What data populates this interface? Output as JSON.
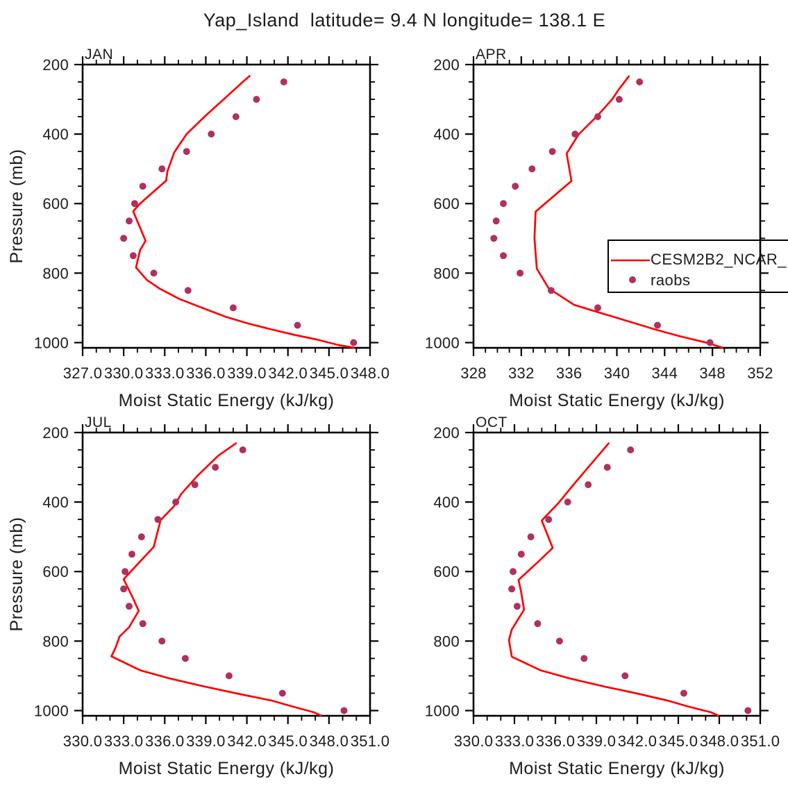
{
  "title": "Yap_Island  latitude= 9.4 N longitude= 138.1 E",
  "colors": {
    "model_line": "#ff0000",
    "raobs_dot": "#b03060",
    "axis": "#000000",
    "text": "#1c1c1c"
  },
  "legend": {
    "items": [
      {
        "label": "CESM2B2_NCAR_",
        "type": "line",
        "color": "#ff0000"
      },
      {
        "label": "raobs",
        "type": "dot",
        "color": "#b03060"
      }
    ]
  },
  "y_axis_label": "Pressure (mb)",
  "x_axis_label": "Moist Static Energy (kJ/kg)",
  "chart_data": [
    {
      "type": "line+scatter",
      "panel": "JAN",
      "xlabel": "Moist Static Energy (kJ/kg)",
      "ylabel": "Pressure (mb)",
      "xlim": [
        327,
        348
      ],
      "ylim": [
        200,
        1015
      ],
      "x_major_values": [
        327,
        330,
        333,
        336,
        339,
        342,
        345,
        348
      ],
      "x_tick_labels": [
        "327.0",
        "330.0",
        "333.0",
        "336.0",
        "339.0",
        "342.0",
        "345.0",
        "348.0"
      ],
      "x_minor_step": 1,
      "y_major_values": [
        200,
        400,
        600,
        800,
        1000
      ],
      "y_tick_labels": [
        "200",
        "400",
        "600",
        "800",
        "1000"
      ],
      "y_minor_step": 50,
      "series": [
        {
          "name": "CESM2B2_NCAR_",
          "type": "line",
          "points_pressure_value": [
            [
              233,
              339.2
            ],
            [
              250,
              338.7
            ],
            [
              300,
              337.3
            ],
            [
              350,
              335.9
            ],
            [
              400,
              334.6
            ],
            [
              452,
              333.7
            ],
            [
              507,
              333.2
            ],
            [
              534,
              333.1
            ],
            [
              600,
              331.2
            ],
            [
              622,
              330.7
            ],
            [
              660,
              331.1
            ],
            [
              707,
              331.6
            ],
            [
              734,
              331.2
            ],
            [
              784,
              330.9
            ],
            [
              820,
              331.7
            ],
            [
              844,
              332.6
            ],
            [
              875,
              334.1
            ],
            [
              901,
              335.8
            ],
            [
              925,
              337.4
            ],
            [
              945,
              339.1
            ],
            [
              961,
              340.7
            ],
            [
              977,
              342.4
            ],
            [
              991,
              344.1
            ],
            [
              1007,
              345.7
            ],
            [
              1014,
              346.8
            ]
          ]
        },
        {
          "name": "raobs",
          "type": "scatter",
          "pressures": [
            250,
            300,
            350,
            400,
            450,
            500,
            550,
            600,
            650,
            700,
            750,
            800,
            850,
            900,
            950,
            1000
          ],
          "values": [
            341.7,
            339.7,
            338.2,
            336.4,
            334.6,
            332.8,
            331.4,
            330.8,
            330.4,
            330.0,
            330.7,
            332.2,
            334.7,
            338.0,
            342.7,
            346.8
          ]
        }
      ]
    },
    {
      "type": "line+scatter",
      "panel": "APR",
      "xlabel": "Moist Static Energy (kJ/kg)",
      "ylabel": "",
      "xlim": [
        328,
        352
      ],
      "ylim": [
        200,
        1015
      ],
      "x_major_values": [
        328,
        332,
        336,
        340,
        344,
        348,
        352
      ],
      "x_tick_labels": [
        "328",
        "332",
        "336",
        "340",
        "344",
        "348",
        "352"
      ],
      "x_minor_step": 1,
      "y_major_values": [
        200,
        400,
        600,
        800,
        1000
      ],
      "y_tick_labels": [
        "200",
        "400",
        "600",
        "800",
        "1000"
      ],
      "y_minor_step": 50,
      "series": [
        {
          "name": "CESM2B2_NCAR_",
          "type": "line",
          "points_pressure_value": [
            [
              234,
              341.0
            ],
            [
              270,
              340.2
            ],
            [
              300,
              339.6
            ],
            [
              350,
              338.3
            ],
            [
              401,
              336.8
            ],
            [
              456,
              335.8
            ],
            [
              535,
              336.2
            ],
            [
              623,
              333.2
            ],
            [
              700,
              333.1
            ],
            [
              787,
              333.3
            ],
            [
              844,
              334.3
            ],
            [
              891,
              336.4
            ],
            [
              908,
              338.0
            ],
            [
              938,
              340.9
            ],
            [
              964,
              343.4
            ],
            [
              981,
              345.2
            ],
            [
              1001,
              347.6
            ],
            [
              1014,
              348.8
            ]
          ]
        },
        {
          "name": "raobs",
          "type": "scatter",
          "pressures": [
            250,
            300,
            350,
            400,
            450,
            500,
            550,
            600,
            650,
            700,
            750,
            800,
            850,
            900,
            950,
            1000
          ],
          "values": [
            341.9,
            340.2,
            338.4,
            336.5,
            334.6,
            332.9,
            331.5,
            330.5,
            329.9,
            329.7,
            330.5,
            331.9,
            334.5,
            338.4,
            343.4,
            347.8
          ]
        }
      ]
    },
    {
      "type": "line+scatter",
      "panel": "JUL",
      "xlabel": "Moist Static Energy (kJ/kg)",
      "ylabel": "Pressure (mb)",
      "xlim": [
        330,
        351
      ],
      "ylim": [
        200,
        1015
      ],
      "x_major_values": [
        330,
        333,
        336,
        339,
        342,
        345,
        348,
        351
      ],
      "x_tick_labels": [
        "330.0",
        "333.0",
        "336.0",
        "339.0",
        "342.0",
        "345.0",
        "348.0",
        "351.0"
      ],
      "x_minor_step": 1,
      "y_major_values": [
        200,
        400,
        600,
        800,
        1000
      ],
      "y_tick_labels": [
        "200",
        "400",
        "600",
        "800",
        "1000"
      ],
      "y_minor_step": 50,
      "series": [
        {
          "name": "CESM2B2_NCAR_",
          "type": "line",
          "points_pressure_value": [
            [
              231,
              341.2
            ],
            [
              267,
              339.9
            ],
            [
              324,
              338.4
            ],
            [
              377,
              337.2
            ],
            [
              411,
              336.7
            ],
            [
              452,
              335.7
            ],
            [
              497,
              335.4
            ],
            [
              529,
              335.2
            ],
            [
              571,
              334.2
            ],
            [
              622,
              333.0
            ],
            [
              670,
              333.6
            ],
            [
              713,
              334.1
            ],
            [
              760,
              333.4
            ],
            [
              787,
              332.7
            ],
            [
              820,
              332.4
            ],
            [
              844,
              332.1
            ],
            [
              884,
              334.2
            ],
            [
              908,
              336.4
            ],
            [
              929,
              338.7
            ],
            [
              951,
              341.3
            ],
            [
              971,
              343.8
            ],
            [
              989,
              345.4
            ],
            [
              1005,
              346.9
            ],
            [
              1014,
              347.4
            ]
          ]
        },
        {
          "name": "raobs",
          "type": "scatter",
          "pressures": [
            250,
            300,
            350,
            400,
            450,
            500,
            550,
            600,
            650,
            700,
            750,
            800,
            850,
            900,
            950,
            1000
          ],
          "values": [
            341.7,
            339.7,
            338.2,
            336.8,
            335.5,
            334.3,
            333.6,
            333.1,
            333.0,
            333.4,
            334.4,
            335.8,
            337.5,
            340.7,
            344.6,
            349.1
          ]
        }
      ]
    },
    {
      "type": "line+scatter",
      "panel": "OCT",
      "xlabel": "Moist Static Energy (kJ/kg)",
      "ylabel": "",
      "xlim": [
        330,
        351
      ],
      "ylim": [
        200,
        1015
      ],
      "x_major_values": [
        330,
        333,
        336,
        339,
        342,
        345,
        348,
        351
      ],
      "x_tick_labels": [
        "330.0",
        "333.0",
        "336.0",
        "339.0",
        "342.0",
        "345.0",
        "348.0",
        "351.0"
      ],
      "x_minor_step": 1,
      "y_major_values": [
        200,
        400,
        600,
        800,
        1000
      ],
      "y_tick_labels": [
        "200",
        "400",
        "600",
        "800",
        "1000"
      ],
      "y_minor_step": 50,
      "series": [
        {
          "name": "CESM2B2_NCAR_",
          "type": "line",
          "points_pressure_value": [
            [
              231,
              339.9
            ],
            [
              291,
              338.6
            ],
            [
              351,
              337.3
            ],
            [
              404,
              336.2
            ],
            [
              453,
              335.0
            ],
            [
              532,
              335.8
            ],
            [
              577,
              334.6
            ],
            [
              624,
              333.3
            ],
            [
              660,
              333.5
            ],
            [
              710,
              333.7
            ],
            [
              767,
              332.8
            ],
            [
              797,
              332.6
            ],
            [
              845,
              332.8
            ],
            [
              884,
              334.9
            ],
            [
              908,
              337.1
            ],
            [
              931,
              339.6
            ],
            [
              951,
              342.0
            ],
            [
              971,
              344.2
            ],
            [
              989,
              345.8
            ],
            [
              1005,
              347.4
            ],
            [
              1014,
              347.9
            ]
          ]
        },
        {
          "name": "raobs",
          "type": "scatter",
          "pressures": [
            250,
            300,
            350,
            400,
            450,
            500,
            550,
            600,
            650,
            700,
            750,
            800,
            850,
            900,
            950,
            1000
          ],
          "values": [
            341.5,
            339.8,
            338.4,
            336.9,
            335.5,
            334.2,
            333.5,
            332.9,
            332.8,
            333.2,
            334.7,
            336.3,
            338.1,
            341.1,
            345.4,
            350.1
          ]
        }
      ]
    }
  ]
}
